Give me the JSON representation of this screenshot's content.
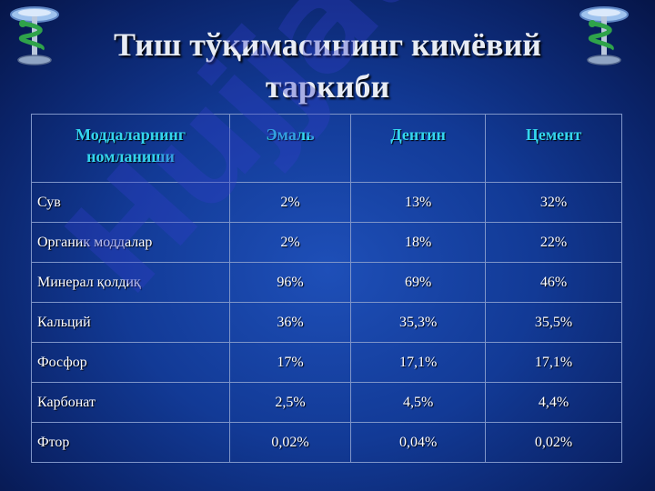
{
  "title": "Тиш тўқимасининг кимёвий таркиби",
  "watermark": "Hujjat 24",
  "icons": {
    "left": "rod-of-asclepius-icon",
    "right": "rod-of-asclepius-icon"
  },
  "colors": {
    "header_text": "#34d6ee",
    "cell_text": "#ffffff",
    "grid": "#7f95c8",
    "background": "#123a96"
  },
  "table": {
    "headers": [
      "Моддаларнинг номланиши",
      "Эмаль",
      "Дентин",
      "Цемент"
    ],
    "rows": [
      {
        "label": "Сув",
        "values": [
          "2%",
          "13%",
          "32%"
        ]
      },
      {
        "label": "Органик моддалар",
        "values": [
          "2%",
          "18%",
          "22%"
        ]
      },
      {
        "label": "Минерал қолдиқ",
        "values": [
          "96%",
          "69%",
          "46%"
        ]
      },
      {
        "label": "Кальций",
        "values": [
          "36%",
          "35,3%",
          "35,5%"
        ]
      },
      {
        "label": "Фосфор",
        "values": [
          "17%",
          "17,1%",
          "17,1%"
        ]
      },
      {
        "label": "Карбонат",
        "values": [
          "2,5%",
          "4,5%",
          "4,4%"
        ]
      },
      {
        "label": "Фтор",
        "values": [
          "0,02%",
          "0,04%",
          "0,02%"
        ]
      }
    ]
  }
}
